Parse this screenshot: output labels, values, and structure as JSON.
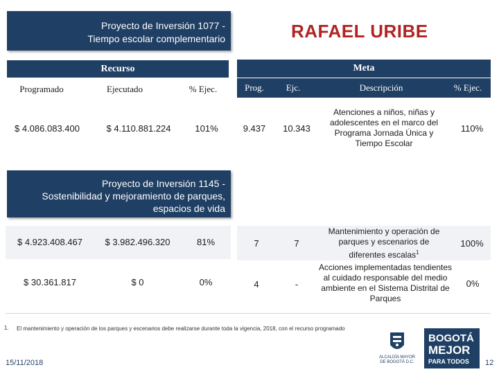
{
  "project1": {
    "title_line1": "Proyecto de Inversión 1077 -",
    "title_line2": "Tiempo escolar complementario"
  },
  "locality_title": "RAFAEL URIBE",
  "recurso_label": "Recurso",
  "meta_label": "Meta",
  "headers": {
    "programado": "Programado",
    "ejecutado": "Ejecutado",
    "pct_ejec": "% Ejec.",
    "prog": "Prog.",
    "ejc": "Ejc.",
    "descripcion": "Descripción",
    "pct_ejec_meta": "% Ejec."
  },
  "row1": {
    "programado": "$ 4.086.083.400",
    "ejecutado": "$ 4.110.881.224",
    "pct": "101%",
    "prog": "9.437",
    "ejc": "10.343",
    "descripcion": "Atenciones a niños, niñas y adolescentes en el marco del Programa Jornada Única y Tiempo Escolar",
    "pct_meta": "110%"
  },
  "project2": {
    "title_line1": "Proyecto de Inversión 1145 -",
    "title_line2": "Sostenibilidad y mejoramiento de parques,",
    "title_line3": "espacios de vida"
  },
  "row2": {
    "programado": "$ 4.923.408.467",
    "ejecutado": "$ 3.982.496.320",
    "pct": "81%",
    "prog": "7",
    "ejc": "7",
    "descripcion": "Mantenimiento y operación de parques y escenarios de diferentes escalas",
    "footnote_mark": "1",
    "pct_meta": "100%"
  },
  "row3": {
    "programado": "$ 30.361.817",
    "ejecutado": "$ 0",
    "pct": "0%",
    "prog": "4",
    "ejc": "-",
    "descripcion": "Acciones implementadas tendientes al cuidado responsable del medio ambiente en el Sistema Distrital de Parques",
    "pct_meta": "0%"
  },
  "footnote": {
    "number": "1.",
    "text": "El mantenimiento y operación de los parques y escenarios  debe realizarse durante toda la vigencia, 2018, con el recurso programado"
  },
  "footer": {
    "date": "15/11/2018",
    "page": "12",
    "alcaldia_line1": "ALCALDÍA MAYOR",
    "alcaldia_line2": "DE BOGOTÁ D.C.",
    "bogota_logo": "BOGOTÁ",
    "mejor_logo": "MEJOR",
    "para_todos": "PARA TODOS"
  },
  "colors": {
    "navy": "#1f3f64",
    "accent_red": "#b22222",
    "row_gray": "#f0f2f5"
  }
}
